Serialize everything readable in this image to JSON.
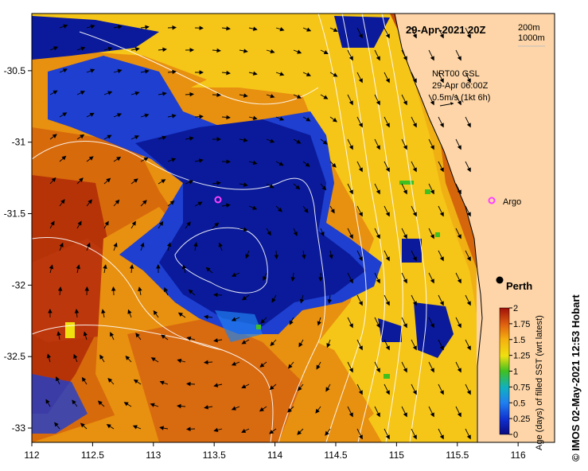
{
  "map": {
    "date_label": "29-Apr-2021 20Z",
    "contour_legend": [
      "200m",
      "1000m"
    ],
    "current_legend": {
      "line1": "NRT00 GSL",
      "line2": "29-Apr 06:00Z",
      "line3": "0.5m/s (1kt 6h)"
    },
    "places": [
      {
        "name": "Argo",
        "lon": 115.75,
        "lat": -31.4
      },
      {
        "name": "Perth",
        "lon": 115.85,
        "lat": -31.95
      }
    ],
    "argo_marker": {
      "lon": 113.55,
      "lat": -31.38
    },
    "colors": {
      "land": "#fdd5a8",
      "deep_blue": "#0a1a9a",
      "mid_blue": "#1e3fd0",
      "yellow": "#f5c518",
      "orange": "#e8900f",
      "dark_orange": "#c84a0a",
      "red": "#a01808",
      "marker": "#ff40ff"
    }
  },
  "chart_data": {
    "type": "heatmap",
    "xlim": [
      112,
      116.3
    ],
    "ylim": [
      -33.1,
      -30.1
    ],
    "x_ticks": [
      "112",
      "112.5",
      "113",
      "113.5",
      "114",
      "114.5",
      "115",
      "115.5",
      "116"
    ],
    "y_ticks": [
      "-30.5",
      "-31",
      "-31.5",
      "-32",
      "-32.5",
      "-33"
    ],
    "colorbar": {
      "label": "Age (days) of filled SST (wrt latest)",
      "ticks": [
        "2",
        "1.75",
        "1.5",
        "1.25",
        "1",
        "0.75",
        "0.5",
        "0.25",
        "0"
      ],
      "range": [
        0,
        2
      ]
    }
  },
  "credit": "© IMOS 02-May-2021 12:53 Hobart"
}
